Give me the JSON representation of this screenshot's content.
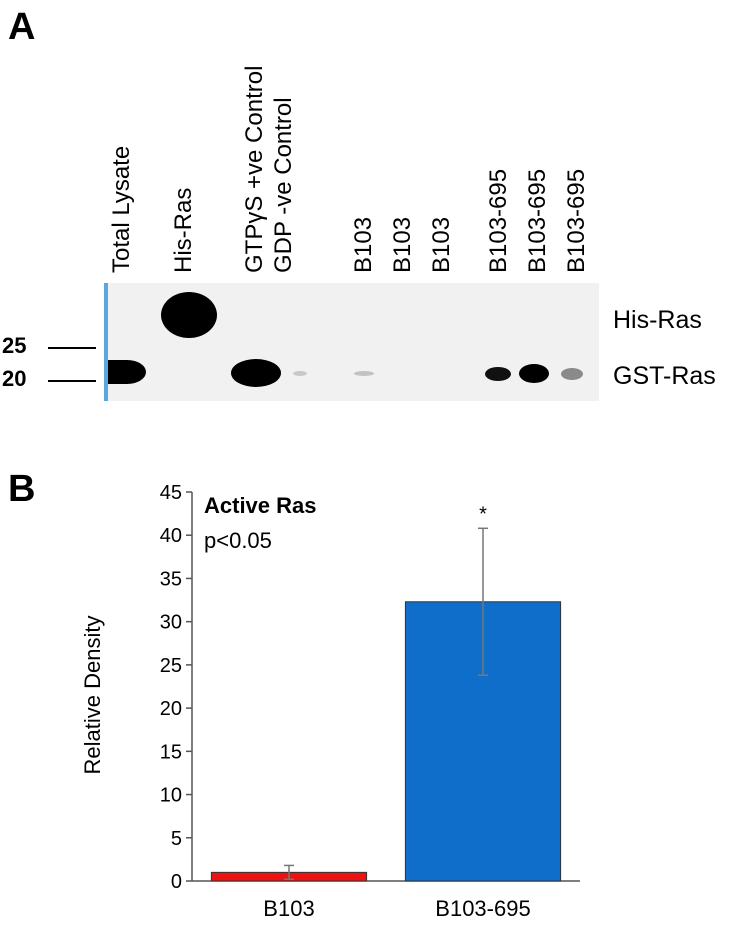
{
  "panel_a": {
    "letter": "A",
    "lanes": [
      "Total Lysate",
      "His-Ras",
      "GTPγS +ve Control",
      "GDP -ve Control",
      "B103",
      "B103",
      "B103",
      "B103-695",
      "B103-695",
      "B103-695"
    ],
    "markers": [
      "25",
      "20"
    ],
    "band_labels": [
      "His-Ras",
      "GST-Ras"
    ],
    "blot_background": "#f1f1f1",
    "membrane_edge_color": "#5aa7de"
  },
  "panel_b": {
    "letter": "B"
  },
  "chart_data": {
    "type": "bar",
    "categories": [
      "B103",
      "B103-695"
    ],
    "values": [
      1.0,
      32.3
    ],
    "error_bars": [
      0.8,
      8.5
    ],
    "colors": [
      "#ee1111",
      "#0e6ec9"
    ],
    "ylabel": "Relative Density",
    "ylim": [
      0,
      45
    ],
    "yticks": [
      "0",
      "5",
      "10",
      "15",
      "20",
      "25",
      "30",
      "35",
      "40",
      "45"
    ],
    "annotation_title": "Active Ras",
    "annotation_text": "p<0.05",
    "significance_marker": "*",
    "grid": false
  }
}
